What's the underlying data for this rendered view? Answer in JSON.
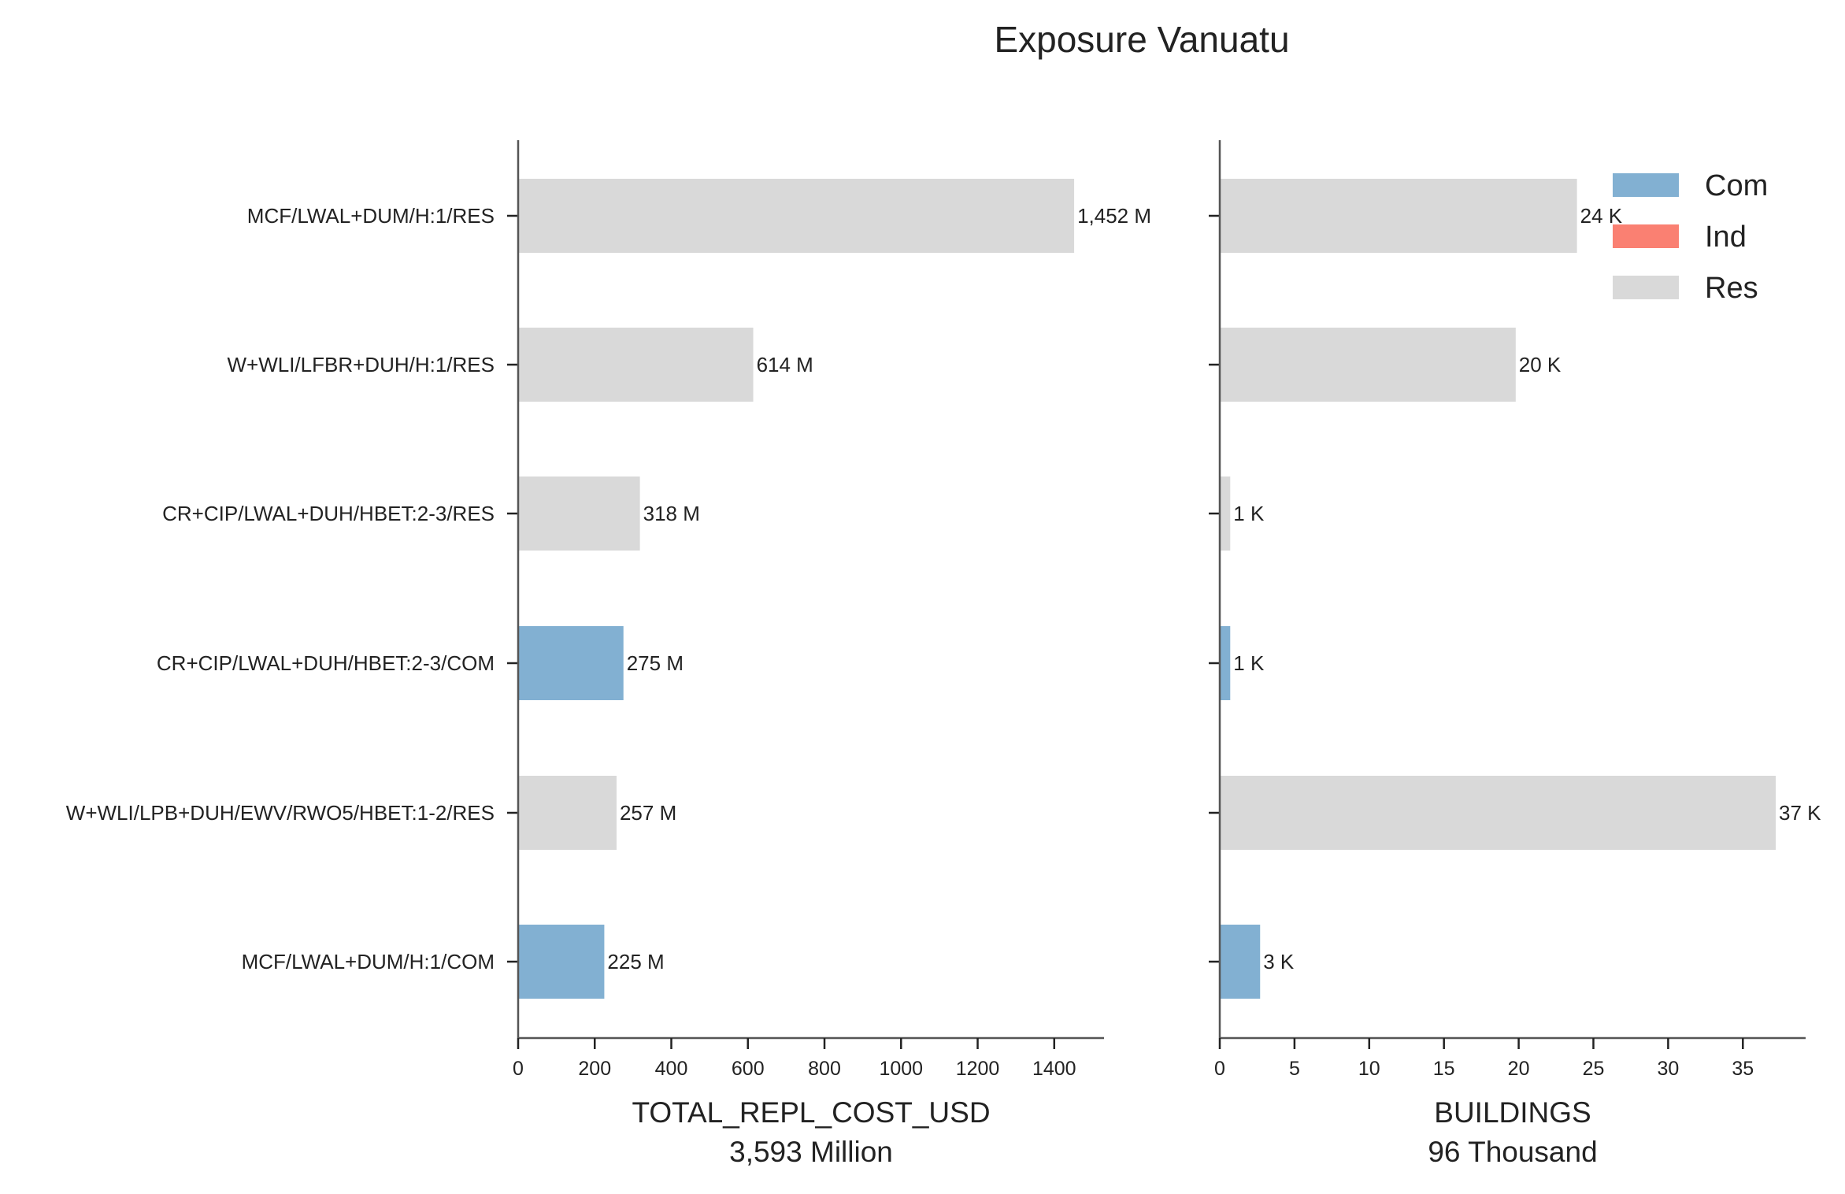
{
  "chart_data": {
    "title": "Exposure Vanuatu",
    "type": "bar",
    "orientation": "horizontal",
    "categories": [
      "MCF/LWAL+DUM/H:1/RES",
      "W+WLI/LFBR+DUH/H:1/RES",
      "CR+CIP/LWAL+DUH/HBET:2-3/RES",
      "CR+CIP/LWAL+DUH/HBET:2-3/COM",
      "W+WLI/LPB+DUH/EWV/RWO5/HBET:1-2/RES",
      "MCF/LWAL+DUM/H:1/COM"
    ],
    "occupancy": [
      "Res",
      "Res",
      "Res",
      "Com",
      "Res",
      "Com"
    ],
    "colors": {
      "Com": "#82b0d2",
      "Ind": "#fa8072",
      "Res": "#d9d9d9"
    },
    "legend": {
      "position": "top-right",
      "entries": [
        "Com",
        "Ind",
        "Res"
      ]
    },
    "panels": [
      {
        "xlabel": "TOTAL_REPL_COST_USD",
        "subtitle": "3,593 Million",
        "values": [
          1452,
          614,
          318,
          275,
          257,
          225
        ],
        "value_labels": [
          "1,452 M",
          "614 M",
          "318 M",
          "275 M",
          "257 M",
          "225 M"
        ],
        "xlim": [
          0,
          1530
        ],
        "xticks": [
          0,
          200,
          400,
          600,
          800,
          1000,
          1200,
          1400
        ]
      },
      {
        "xlabel": "BUILDINGS",
        "subtitle": "96 Thousand",
        "values": [
          23.9,
          19.8,
          0.7,
          0.7,
          37.2,
          2.7
        ],
        "value_labels": [
          "24 K",
          "20 K",
          "1 K",
          "1 K",
          "37 K",
          "3 K"
        ],
        "xlim": [
          0,
          39.2
        ],
        "xticks": [
          0,
          5,
          10,
          15,
          20,
          25,
          30,
          35
        ]
      }
    ]
  }
}
